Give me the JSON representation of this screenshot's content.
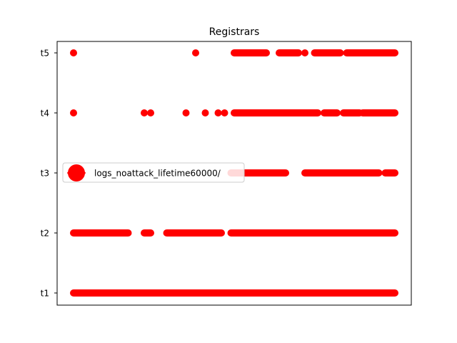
{
  "chart_data": {
    "type": "scatter",
    "title": "Registrars",
    "xlabel": "",
    "ylabel": "",
    "grid": false,
    "x_ticks_shown": false,
    "xlim": [
      0,
      1
    ],
    "categories": [
      "t1",
      "t2",
      "t3",
      "t4",
      "t5"
    ],
    "legend_position": "center-left",
    "series": [
      {
        "name": "logs_noattack_lifetime60000/",
        "color": "#ff0000",
        "marker": "circle",
        "points": {
          "t1": [
            [
              0.0,
              1.0
            ]
          ],
          "t2": [
            [
              0.0,
              0.17
            ],
            [
              0.22,
              0.24
            ],
            [
              0.29,
              0.46
            ],
            [
              0.49,
              0.5
            ],
            [
              0.5,
              1.0
            ]
          ],
          "t3": [
            [
              0.49,
              0.66
            ],
            [
              0.72,
              0.95
            ],
            [
              0.97,
              1.0
            ]
          ],
          "t4": [
            0.0,
            0.22,
            0.24,
            0.35,
            0.41,
            0.45,
            0.47,
            [
              0.5,
              0.76
            ],
            [
              0.78,
              0.82
            ],
            [
              0.84,
              0.89
            ],
            [
              0.9,
              1.0
            ]
          ],
          "t5": [
            0.0,
            0.38,
            [
              0.5,
              0.6
            ],
            [
              0.64,
              0.7
            ],
            0.72,
            [
              0.75,
              0.83
            ],
            [
              0.85,
              1.0
            ]
          ]
        }
      }
    ]
  }
}
